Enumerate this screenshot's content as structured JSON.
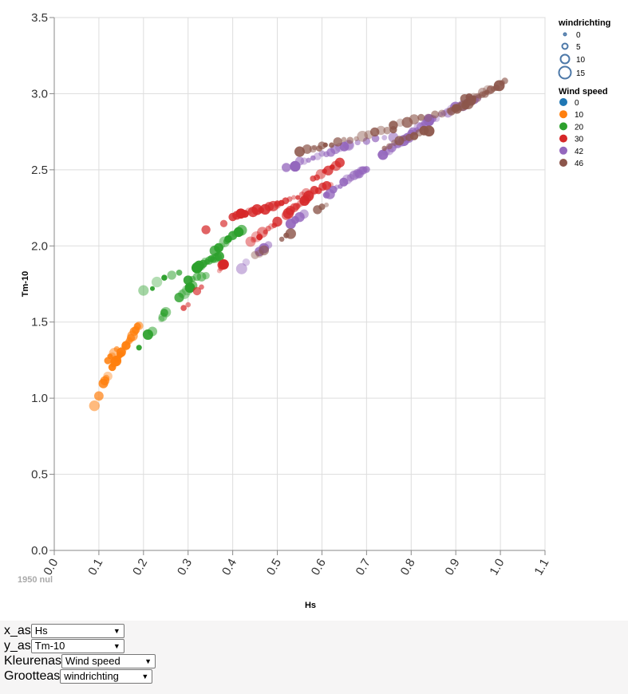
{
  "controls": [
    {
      "label": "x_as",
      "value": "Hs"
    },
    {
      "label": "y_as",
      "value": "Tm-10"
    },
    {
      "label": "Kleurenas",
      "value": "Wind speed"
    },
    {
      "label": "Grootteas",
      "value": "windrichting"
    }
  ],
  "nul_label": "1950 nul",
  "chart_data": {
    "type": "scatter",
    "xlabel": "Hs",
    "ylabel": "Tm-10",
    "xlim": [
      0.0,
      1.1
    ],
    "ylim": [
      0.0,
      3.5
    ],
    "x_ticks": [
      "0.0",
      "0.1",
      "0.2",
      "0.3",
      "0.4",
      "0.5",
      "0.6",
      "0.7",
      "0.8",
      "0.9",
      "1.0",
      "1.1"
    ],
    "y_ticks": [
      "0.0",
      "0.5",
      "1.0",
      "1.5",
      "2.0",
      "2.5",
      "3.0",
      "3.5"
    ],
    "grid": true,
    "legend_position": "top-right",
    "size_legend": {
      "title": "windrichting",
      "entries": [
        "0",
        "5",
        "10",
        "15"
      ]
    },
    "color_legend": {
      "title": "Wind speed",
      "entries": [
        {
          "label": "0",
          "color": "#1f77b4"
        },
        {
          "label": "10",
          "color": "#ff7f0e"
        },
        {
          "label": "20",
          "color": "#2ca02c"
        },
        {
          "label": "30",
          "color": "#d62728"
        },
        {
          "label": "42",
          "color": "#9467bd"
        },
        {
          "label": "46",
          "color": "#8c564b"
        }
      ]
    },
    "series": [
      {
        "name": "10",
        "color": "#ff7f0e",
        "clusters": [
          [
            0.09,
            0.96,
            0.09,
            0.96,
            1
          ],
          [
            0.1,
            1.02,
            0.1,
            1.02,
            1
          ],
          [
            0.11,
            1.1,
            0.12,
            1.14,
            4
          ],
          [
            0.13,
            1.2,
            0.15,
            1.3,
            8
          ],
          [
            0.15,
            1.3,
            0.19,
            1.48,
            12
          ],
          [
            0.12,
            1.25,
            0.14,
            1.32,
            5
          ]
        ]
      },
      {
        "name": "20",
        "color": "#2ca02c",
        "clusters": [
          [
            0.19,
            1.33,
            0.19,
            1.33,
            1
          ],
          [
            0.21,
            1.41,
            0.22,
            1.43,
            2
          ],
          [
            0.24,
            1.53,
            0.25,
            1.57,
            4
          ],
          [
            0.2,
            1.71,
            0.22,
            1.72,
            2
          ],
          [
            0.23,
            1.76,
            0.28,
            1.83,
            4
          ],
          [
            0.28,
            1.67,
            0.31,
            1.73,
            6
          ],
          [
            0.3,
            1.78,
            0.34,
            1.8,
            5
          ],
          [
            0.32,
            1.86,
            0.37,
            1.94,
            12
          ],
          [
            0.36,
            1.96,
            0.39,
            2.05,
            8
          ],
          [
            0.4,
            2.07,
            0.42,
            2.11,
            4
          ]
        ]
      },
      {
        "name": "30",
        "color": "#d62728",
        "clusters": [
          [
            0.29,
            1.6,
            0.3,
            1.62,
            2
          ],
          [
            0.32,
            1.7,
            0.33,
            1.72,
            2
          ],
          [
            0.37,
            1.84,
            0.38,
            1.88,
            4
          ],
          [
            0.34,
            2.1,
            0.34,
            2.1,
            1
          ],
          [
            0.38,
            2.15,
            0.38,
            2.15,
            1
          ],
          [
            0.4,
            2.19,
            0.5,
            2.27,
            12
          ],
          [
            0.5,
            2.27,
            0.62,
            2.4,
            14
          ],
          [
            0.58,
            2.44,
            0.64,
            2.54,
            8
          ],
          [
            0.44,
            2.02,
            0.5,
            2.16,
            10
          ],
          [
            0.52,
            2.2,
            0.57,
            2.33,
            12
          ]
        ]
      },
      {
        "name": "42",
        "color": "#9467bd",
        "clusters": [
          [
            0.42,
            1.86,
            0.43,
            1.89,
            2
          ],
          [
            0.46,
            1.97,
            0.48,
            2.01,
            3
          ],
          [
            0.53,
            2.15,
            0.56,
            2.2,
            4
          ],
          [
            0.61,
            2.33,
            0.68,
            2.48,
            10
          ],
          [
            0.68,
            2.47,
            0.7,
            2.51,
            6
          ],
          [
            0.55,
            2.55,
            0.66,
            2.66,
            12
          ],
          [
            0.73,
            2.59,
            0.79,
            2.7,
            10
          ],
          [
            0.79,
            2.71,
            0.84,
            2.83,
            12
          ],
          [
            0.84,
            2.82,
            0.95,
            2.98,
            14
          ],
          [
            0.52,
            2.51,
            0.54,
            2.53,
            2
          ],
          [
            0.66,
            2.66,
            0.76,
            2.72,
            6
          ]
        ]
      },
      {
        "name": "46",
        "color": "#8c564b",
        "clusters": [
          [
            0.45,
            1.93,
            0.47,
            1.97,
            3
          ],
          [
            0.51,
            2.05,
            0.53,
            2.09,
            3
          ],
          [
            0.59,
            2.23,
            0.61,
            2.27,
            3
          ],
          [
            0.74,
            2.65,
            0.84,
            2.76,
            10
          ],
          [
            0.89,
            2.88,
            1.01,
            3.08,
            20
          ],
          [
            0.58,
            2.64,
            0.76,
            2.77,
            14
          ],
          [
            0.76,
            2.79,
            0.9,
            2.9,
            10
          ],
          [
            0.92,
            2.96,
            0.97,
            3.02,
            6
          ],
          [
            0.55,
            2.61,
            0.6,
            2.66,
            4
          ]
        ]
      }
    ]
  }
}
